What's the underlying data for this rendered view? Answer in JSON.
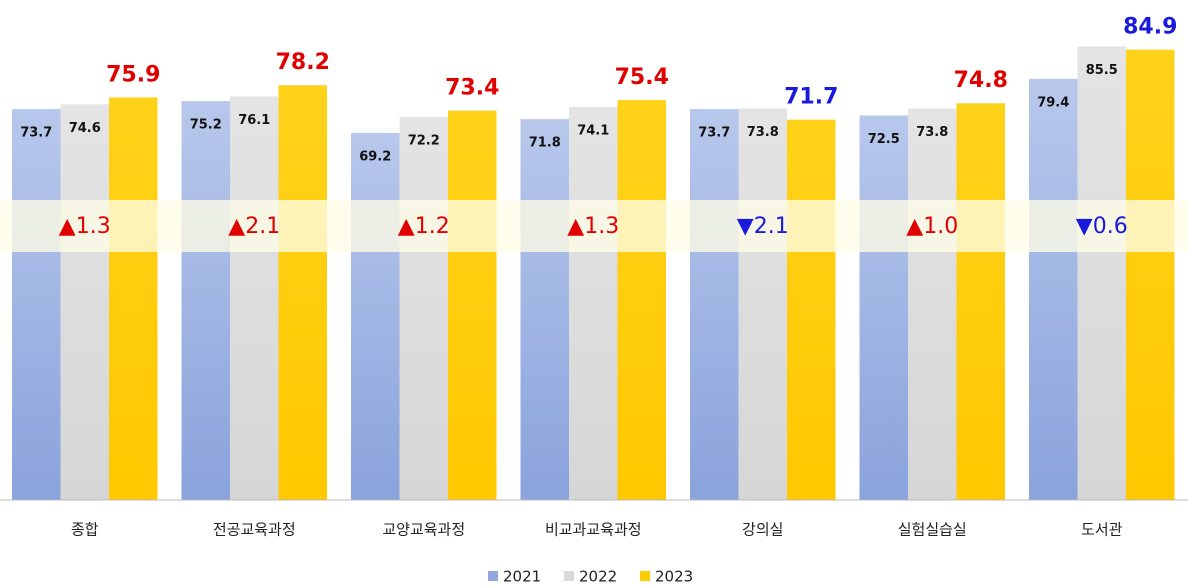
{
  "chart_data": {
    "type": "bar",
    "categories": [
      "종합",
      "전공교육과정",
      "교양교육과정",
      "비교과교육과정",
      "강의실",
      "실험실습실",
      "도서관"
    ],
    "series": [
      {
        "name": "2021",
        "color": "#8fa7dc",
        "values": [
          73.7,
          75.2,
          69.2,
          71.8,
          73.7,
          72.5,
          79.4
        ]
      },
      {
        "name": "2022",
        "color": "#d9d9d9",
        "values": [
          74.6,
          76.1,
          72.2,
          74.1,
          73.8,
          73.8,
          85.5
        ]
      },
      {
        "name": "2023",
        "color": "#ffcc00",
        "values": [
          75.9,
          78.2,
          73.4,
          75.4,
          71.7,
          74.8,
          84.9
        ]
      }
    ],
    "change_labels": [
      "▲1.3",
      "▲2.1",
      "▲1.2",
      "▲1.3",
      "▼2.1",
      "▲1.0",
      "▼0.6"
    ],
    "change_directions": [
      "up",
      "up",
      "up",
      "up",
      "down",
      "up",
      "down"
    ],
    "up_color": "#e00000",
    "down_color": "#1a1adc",
    "ylim": [
      0,
      92
    ],
    "grid": false,
    "legend": "bottom"
  }
}
